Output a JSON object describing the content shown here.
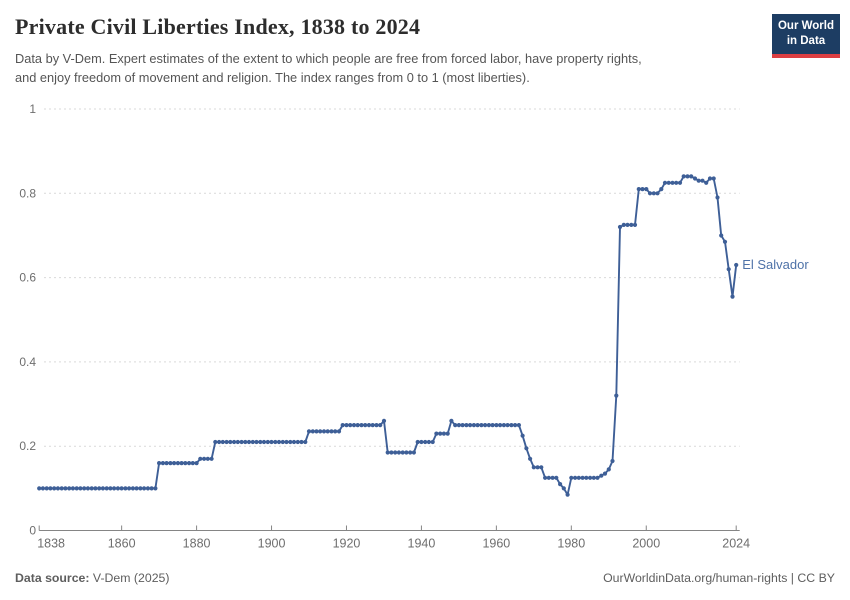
{
  "header": {
    "title": "Private Civil Liberties Index, 1838 to 2024",
    "subtitle_line1": "Data by V-Dem. Expert estimates of the extent to which people are free from forced labor, have property rights,",
    "subtitle_line2": "and enjoy freedom of movement and religion. The index ranges from 0 to 1 (most liberties)."
  },
  "logo": {
    "line1": "Our World",
    "line2": "in Data",
    "bg_color": "#1d3d63",
    "bar_color": "#dc3e42"
  },
  "footer": {
    "source_label": "Data source:",
    "source_value": "V-Dem (2025)",
    "right_text": "OurWorldinData.org/human-rights | CC BY"
  },
  "chart_data": {
    "type": "line",
    "title": "Private Civil Liberties Index, 1838 to 2024",
    "entity_label": "El Salvador",
    "start_year": 1838,
    "end_year": 2024,
    "ylim": [
      0,
      1
    ],
    "yticks": [
      0,
      0.2,
      0.4,
      0.6,
      0.8,
      1
    ],
    "ytick_labels": [
      "0",
      "0.2",
      "0.4",
      "0.6",
      "0.8",
      "1"
    ],
    "xticks": [
      1838,
      1860,
      1880,
      1900,
      1920,
      1940,
      1960,
      1980,
      2000,
      2024
    ],
    "grid": true,
    "legend_position": "end-of-line-label",
    "line_color": "#3e5f97",
    "label_color": "#4e72a8",
    "grid_color": "#d9d9d9",
    "axis_color": "#858585",
    "tick_text_color": "#6e6e6e",
    "series": [
      {
        "name": "El Salvador",
        "values": [
          0.1,
          0.1,
          0.1,
          0.1,
          0.1,
          0.1,
          0.1,
          0.1,
          0.1,
          0.1,
          0.1,
          0.1,
          0.1,
          0.1,
          0.1,
          0.1,
          0.1,
          0.1,
          0.1,
          0.1,
          0.1,
          0.1,
          0.1,
          0.1,
          0.1,
          0.1,
          0.1,
          0.1,
          0.1,
          0.1,
          0.1,
          0.1,
          0.16,
          0.16,
          0.16,
          0.16,
          0.16,
          0.16,
          0.16,
          0.16,
          0.16,
          0.16,
          0.16,
          0.17,
          0.17,
          0.17,
          0.17,
          0.21,
          0.21,
          0.21,
          0.21,
          0.21,
          0.21,
          0.21,
          0.21,
          0.21,
          0.21,
          0.21,
          0.21,
          0.21,
          0.21,
          0.21,
          0.21,
          0.21,
          0.21,
          0.21,
          0.21,
          0.21,
          0.21,
          0.21,
          0.21,
          0.21,
          0.235,
          0.235,
          0.235,
          0.235,
          0.235,
          0.235,
          0.235,
          0.235,
          0.235,
          0.25,
          0.25,
          0.25,
          0.25,
          0.25,
          0.25,
          0.25,
          0.25,
          0.25,
          0.25,
          0.25,
          0.26,
          0.185,
          0.185,
          0.185,
          0.185,
          0.185,
          0.185,
          0.185,
          0.185,
          0.21,
          0.21,
          0.21,
          0.21,
          0.21,
          0.23,
          0.23,
          0.23,
          0.23,
          0.26,
          0.25,
          0.25,
          0.25,
          0.25,
          0.25,
          0.25,
          0.25,
          0.25,
          0.25,
          0.25,
          0.25,
          0.25,
          0.25,
          0.25,
          0.25,
          0.25,
          0.25,
          0.25,
          0.225,
          0.195,
          0.17,
          0.15,
          0.15,
          0.15,
          0.125,
          0.125,
          0.125,
          0.125,
          0.11,
          0.1,
          0.085,
          0.125,
          0.125,
          0.125,
          0.125,
          0.125,
          0.125,
          0.125,
          0.125,
          0.13,
          0.135,
          0.145,
          0.165,
          0.32,
          0.72,
          0.725,
          0.725,
          0.725,
          0.725,
          0.81,
          0.81,
          0.81,
          0.8,
          0.8,
          0.8,
          0.81,
          0.825,
          0.825,
          0.825,
          0.825,
          0.825,
          0.84,
          0.84,
          0.84,
          0.835,
          0.83,
          0.83,
          0.825,
          0.835,
          0.835,
          0.79,
          0.7,
          0.685,
          0.62,
          0.555,
          0.63
        ]
      }
    ]
  }
}
